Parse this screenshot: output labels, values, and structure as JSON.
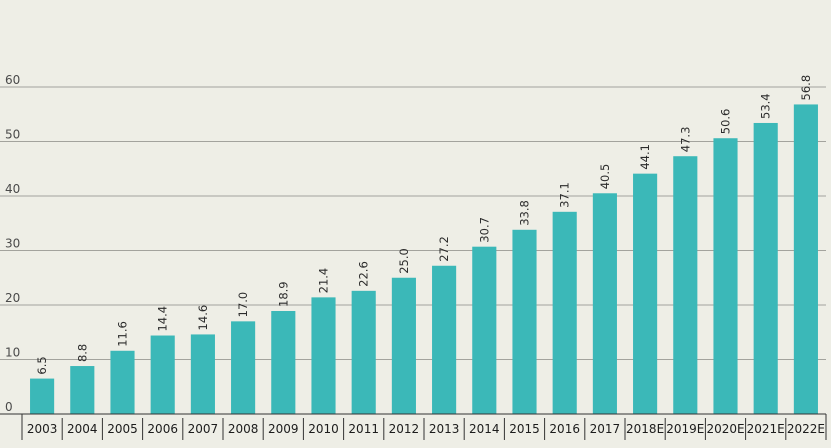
{
  "chart_data": {
    "type": "bar",
    "categories": [
      "2003",
      "2004",
      "2005",
      "2006",
      "2007",
      "2008",
      "2009",
      "2010",
      "2011",
      "2012",
      "2013",
      "2014",
      "2015",
      "2016",
      "2017",
      "2018E",
      "2019E",
      "2020E",
      "2021E",
      "2022E"
    ],
    "values": [
      6.5,
      8.8,
      11.6,
      14.4,
      14.6,
      17.0,
      18.9,
      21.4,
      22.6,
      25.0,
      27.2,
      30.7,
      33.8,
      37.1,
      40.5,
      44.1,
      47.3,
      50.6,
      53.4,
      56.8
    ],
    "data_labels": [
      "6.5",
      "8.8",
      "11.6",
      "14.4",
      "14.6",
      "17.0",
      "18.9",
      "21.4",
      "22.6",
      "25.0",
      "27.2",
      "30.7",
      "33.8",
      "37.1",
      "40.5",
      "44.1",
      "47.3",
      "50.6",
      "53.4",
      "56.8"
    ],
    "y_ticks": [
      0,
      10,
      20,
      30,
      40,
      50,
      60
    ],
    "title": "",
    "xlabel": "",
    "ylabel": "",
    "ylim": [
      0,
      60
    ],
    "grid": true,
    "legend": "none",
    "bar_color": "#3bb8b8"
  }
}
